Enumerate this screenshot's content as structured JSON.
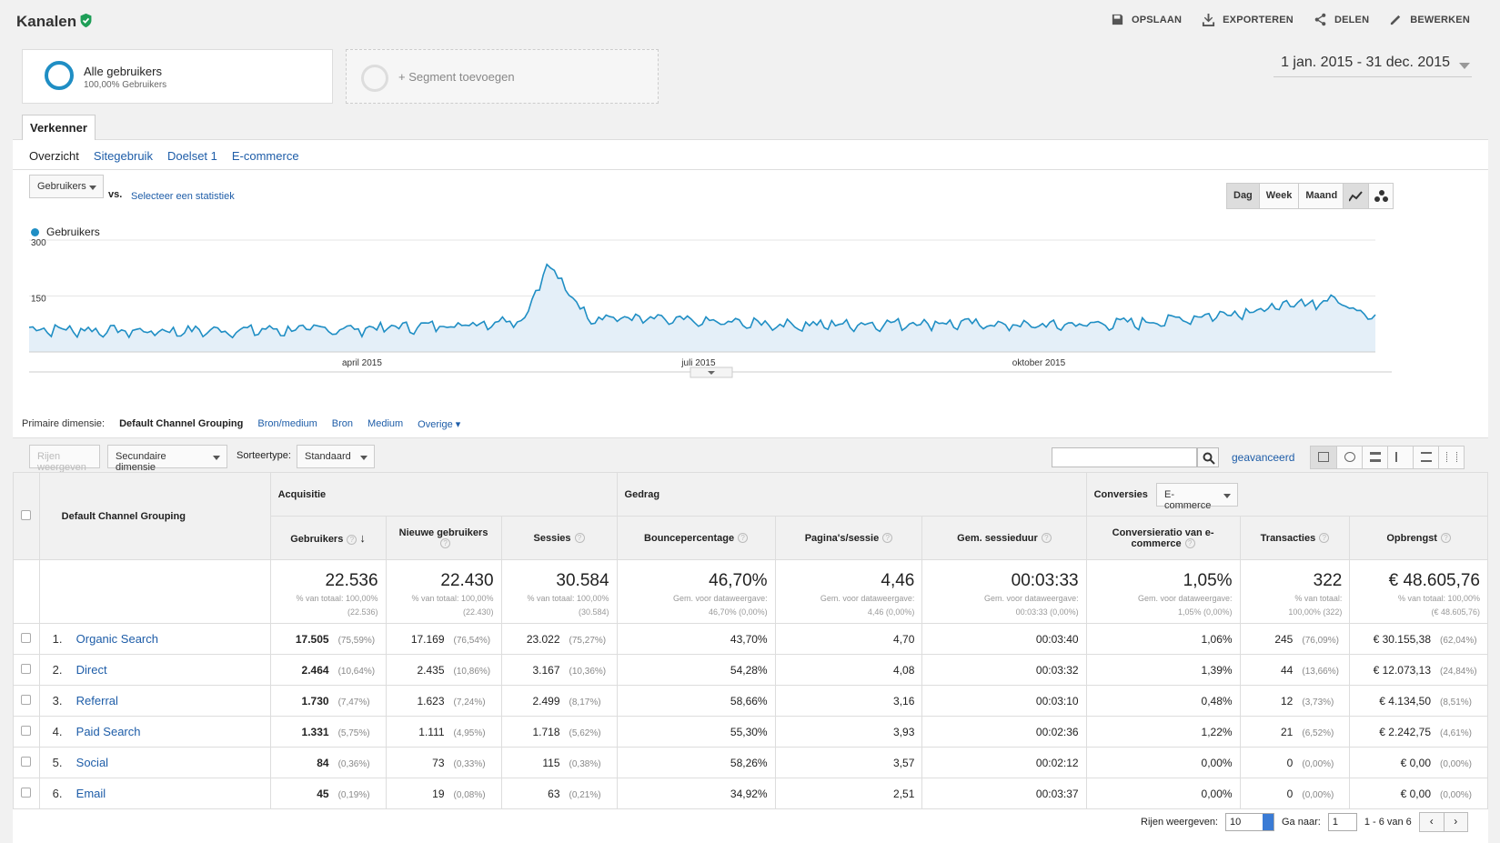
{
  "header": {
    "title": "Kanalen",
    "actions": [
      {
        "label": "OPSLAAN",
        "icon": "save-icon"
      },
      {
        "label": "EXPORTEREN",
        "icon": "download-icon"
      },
      {
        "label": "DELEN",
        "icon": "share-icon"
      },
      {
        "label": "BEWERKEN",
        "icon": "pencil-icon"
      }
    ]
  },
  "segments": {
    "active_name": "Alle gebruikers",
    "active_sub": "100,00% Gebruikers",
    "add_label": "+ Segment toevoegen"
  },
  "date_range": "1 jan. 2015 - 31 dec. 2015",
  "tab": "Verkenner",
  "subtabs": [
    "Overzicht",
    "Sitegebruik",
    "Doelset 1",
    "E-commerce"
  ],
  "chart_controls": {
    "metric": "Gebruikers",
    "vs": "vs.",
    "select_stat": "Selecteer een statistiek",
    "periods": [
      "Dag",
      "Week",
      "Maand"
    ]
  },
  "chart_data": {
    "type": "area",
    "series": [
      {
        "name": "Gebruikers",
        "color": "#1f8ec4"
      }
    ],
    "ytick_labels": [
      "300",
      "150"
    ],
    "xtick_labels": [
      "april 2015",
      "juli 2015",
      "oktober 2015"
    ],
    "ylim": [
      0,
      300
    ],
    "x_range": [
      "2015-01-01",
      "2015-12-31"
    ],
    "anchor_values": [
      {
        "x": "2015-01-01",
        "y": 62
      },
      {
        "x": "2015-02-01",
        "y": 55
      },
      {
        "x": "2015-03-01",
        "y": 58
      },
      {
        "x": "2015-04-01",
        "y": 62
      },
      {
        "x": "2015-05-01",
        "y": 75
      },
      {
        "x": "2015-05-15",
        "y": 90
      },
      {
        "x": "2015-05-21",
        "y": 235
      },
      {
        "x": "2015-06-01",
        "y": 95
      },
      {
        "x": "2015-07-01",
        "y": 80
      },
      {
        "x": "2015-08-01",
        "y": 72
      },
      {
        "x": "2015-09-01",
        "y": 78
      },
      {
        "x": "2015-10-01",
        "y": 70
      },
      {
        "x": "2015-11-01",
        "y": 80
      },
      {
        "x": "2015-12-01",
        "y": 115
      },
      {
        "x": "2015-12-20",
        "y": 140
      },
      {
        "x": "2015-12-31",
        "y": 95
      }
    ]
  },
  "dimensions": {
    "label": "Primaire dimensie:",
    "current": "Default Channel Grouping",
    "others": [
      "Bron/medium",
      "Bron",
      "Medium",
      "Overige"
    ]
  },
  "table_toolbar": {
    "rows_btn": "Rijen weergeven",
    "secondary": "Secundaire dimensie",
    "sort_label": "Sorteertype:",
    "sort_value": "Standaard",
    "advanced": "geavanceerd"
  },
  "table": {
    "dim_header": "Default Channel Grouping",
    "groups": {
      "acq": "Acquisitie",
      "beh": "Gedrag",
      "conv": "Conversies",
      "conv_select": "E-commerce"
    },
    "columns": [
      "Gebruikers",
      "Nieuwe gebruikers",
      "Sessies",
      "Bouncepercentage",
      "Pagina's/sessie",
      "Gem. sessieduur",
      "Conversieratio van e-commerce",
      "Transacties",
      "Opbrengst"
    ],
    "totals": [
      {
        "v": "22.536",
        "s1": "% van totaal: 100,00%",
        "s2": "(22.536)"
      },
      {
        "v": "22.430",
        "s1": "% van totaal: 100,00%",
        "s2": "(22.430)"
      },
      {
        "v": "30.584",
        "s1": "% van totaal: 100,00%",
        "s2": "(30.584)"
      },
      {
        "v": "46,70%",
        "s1": "Gem. voor dataweergave:",
        "s2": "46,70% (0,00%)"
      },
      {
        "v": "4,46",
        "s1": "Gem. voor dataweergave:",
        "s2": "4,46 (0,00%)"
      },
      {
        "v": "00:03:33",
        "s1": "Gem. voor dataweergave:",
        "s2": "00:03:33 (0,00%)"
      },
      {
        "v": "1,05%",
        "s1": "Gem. voor dataweergave:",
        "s2": "1,05% (0,00%)"
      },
      {
        "v": "322",
        "s1": "% van totaal:",
        "s2": "100,00% (322)"
      },
      {
        "v": "€ 48.605,76",
        "s1": "% van totaal: 100,00%",
        "s2": "(€ 48.605,76)"
      }
    ],
    "rows": [
      {
        "n": "1.",
        "name": "Organic Search",
        "users": "17.505",
        "users_p": "(75,59%)",
        "new": "17.169",
        "new_p": "(76,54%)",
        "sess": "23.022",
        "sess_p": "(75,27%)",
        "bounce": "43,70%",
        "pps": "4,70",
        "dur": "00:03:40",
        "cr": "1,06%",
        "tr": "245",
        "tr_p": "(76,09%)",
        "rev": "€ 30.155,38",
        "rev_p": "(62,04%)"
      },
      {
        "n": "2.",
        "name": "Direct",
        "users": "2.464",
        "users_p": "(10,64%)",
        "new": "2.435",
        "new_p": "(10,86%)",
        "sess": "3.167",
        "sess_p": "(10,36%)",
        "bounce": "54,28%",
        "pps": "4,08",
        "dur": "00:03:32",
        "cr": "1,39%",
        "tr": "44",
        "tr_p": "(13,66%)",
        "rev": "€ 12.073,13",
        "rev_p": "(24,84%)"
      },
      {
        "n": "3.",
        "name": "Referral",
        "users": "1.730",
        "users_p": "(7,47%)",
        "new": "1.623",
        "new_p": "(7,24%)",
        "sess": "2.499",
        "sess_p": "(8,17%)",
        "bounce": "58,66%",
        "pps": "3,16",
        "dur": "00:03:10",
        "cr": "0,48%",
        "tr": "12",
        "tr_p": "(3,73%)",
        "rev": "€ 4.134,50",
        "rev_p": "(8,51%)"
      },
      {
        "n": "4.",
        "name": "Paid Search",
        "users": "1.331",
        "users_p": "(5,75%)",
        "new": "1.111",
        "new_p": "(4,95%)",
        "sess": "1.718",
        "sess_p": "(5,62%)",
        "bounce": "55,30%",
        "pps": "3,93",
        "dur": "00:02:36",
        "cr": "1,22%",
        "tr": "21",
        "tr_p": "(6,52%)",
        "rev": "€ 2.242,75",
        "rev_p": "(4,61%)"
      },
      {
        "n": "5.",
        "name": "Social",
        "users": "84",
        "users_p": "(0,36%)",
        "new": "73",
        "new_p": "(0,33%)",
        "sess": "115",
        "sess_p": "(0,38%)",
        "bounce": "58,26%",
        "pps": "3,57",
        "dur": "00:02:12",
        "cr": "0,00%",
        "tr": "0",
        "tr_p": "(0,00%)",
        "rev": "€ 0,00",
        "rev_p": "(0,00%)"
      },
      {
        "n": "6.",
        "name": "Email",
        "users": "45",
        "users_p": "(0,19%)",
        "new": "19",
        "new_p": "(0,08%)",
        "sess": "63",
        "sess_p": "(0,21%)",
        "bounce": "34,92%",
        "pps": "2,51",
        "dur": "00:03:37",
        "cr": "0,00%",
        "tr": "0",
        "tr_p": "(0,00%)",
        "rev": "€ 0,00",
        "rev_p": "(0,00%)"
      }
    ]
  },
  "footer": {
    "rows_label": "Rijen weergeven:",
    "rows_value": "10",
    "goto_label": "Ga naar:",
    "goto_value": "1",
    "range": "1 - 6 van 6",
    "prev": "‹",
    "next": "›"
  }
}
